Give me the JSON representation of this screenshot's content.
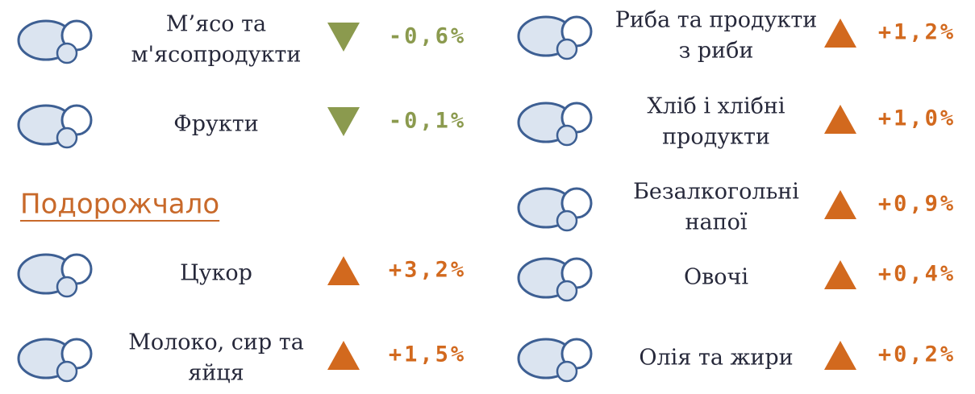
{
  "heading": "Подорожчало",
  "left_items": [
    {
      "label": [
        "М’ясо та",
        "м'ясопродукти"
      ],
      "change": "-0,6%"
    },
    {
      "label": [
        "Фрукти"
      ],
      "change": "-0,1%"
    },
    {
      "label": [
        "Цукор"
      ],
      "change": "+3,2%"
    },
    {
      "label": [
        "Молоко, сир та",
        "яйця"
      ],
      "change": "+1,5%"
    }
  ],
  "right_items": [
    {
      "label": [
        "Риба та продукти",
        "з риби"
      ],
      "change": "+1,2%"
    },
    {
      "label": [
        "Хліб і хлібні",
        "продукти"
      ],
      "change": "+1,0%"
    },
    {
      "label": [
        "Безалкогольні",
        "напої"
      ],
      "change": "+0,9%"
    },
    {
      "label": [
        "Овочі"
      ],
      "change": "+0,4%"
    },
    {
      "label": [
        "Олія та жири"
      ],
      "change": "+0,2%"
    }
  ]
}
